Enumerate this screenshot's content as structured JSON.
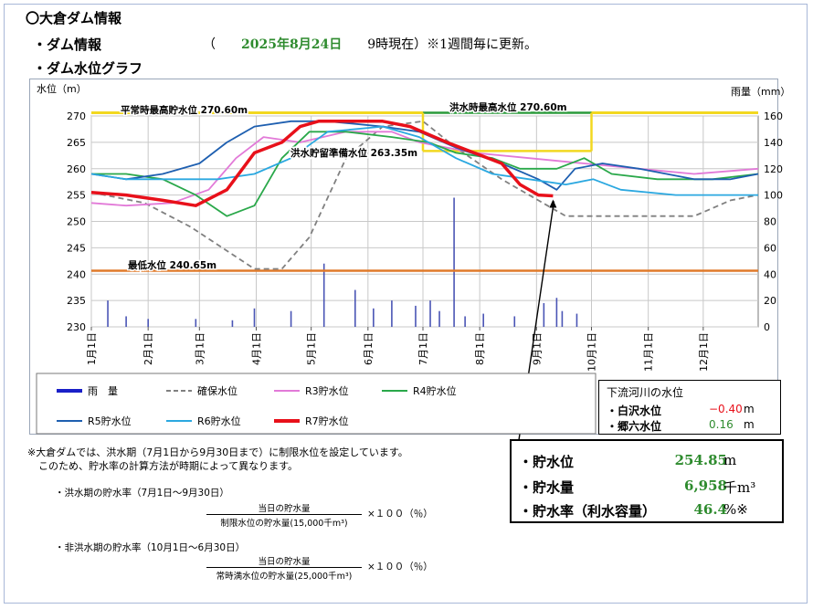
{
  "header": {
    "title": "〇大倉ダム情報",
    "info_label": "・ダム情報",
    "paren_open": "（",
    "date": "2025年8月24日",
    "time_status": "9時現在）※1週間毎に更新。",
    "graph_label": "・ダム水位グラフ"
  },
  "chart_data": {
    "type": "line",
    "left_axis": {
      "label": "水位（m）",
      "range": [
        230,
        270
      ],
      "ticks": [
        230,
        235,
        240,
        245,
        250,
        255,
        260,
        265,
        270
      ]
    },
    "right_axis": {
      "label": "雨量（mm）",
      "range": [
        0,
        160
      ],
      "ticks": [
        0,
        20,
        40,
        60,
        80,
        100,
        120,
        140,
        160
      ]
    },
    "months": [
      "1月1日",
      "2月1日",
      "3月1日",
      "4月1日",
      "5月1日",
      "6月1日",
      "7月1日",
      "8月1日",
      "9月1日",
      "10月1日",
      "11月1日",
      "12月1日"
    ],
    "reference_lines": [
      {
        "label": "平常時最高貯水位 270.60m",
        "value": 270.6
      },
      {
        "label": "洪水時最高水位 270.60m",
        "value": 270.6
      },
      {
        "label": "洪水貯留準備水位 263.35m",
        "value": 263.35
      },
      {
        "label": "最低水位 240.65m",
        "value": 240.65
      }
    ],
    "series": [
      {
        "name": "確保水位",
        "color": "#808080",
        "dash": true,
        "points": [
          [
            1,
            255.5
          ],
          [
            30,
            253.5
          ],
          [
            55,
            249
          ],
          [
            90,
            241
          ],
          [
            105,
            241
          ],
          [
            120,
            247
          ],
          [
            140,
            262
          ],
          [
            160,
            268
          ],
          [
            182,
            269
          ],
          [
            200,
            264
          ],
          [
            225,
            258
          ],
          [
            245,
            254
          ],
          [
            260,
            251
          ],
          [
            275,
            251
          ],
          [
            330,
            251
          ],
          [
            350,
            254
          ],
          [
            365,
            255
          ]
        ]
      },
      {
        "name": "R3貯水位",
        "color": "#e27ad8",
        "points": [
          [
            1,
            253.5
          ],
          [
            20,
            253
          ],
          [
            45,
            253.5
          ],
          [
            65,
            256
          ],
          [
            80,
            262
          ],
          [
            95,
            266
          ],
          [
            115,
            265
          ],
          [
            140,
            267
          ],
          [
            165,
            267
          ],
          [
            180,
            265
          ],
          [
            210,
            263
          ],
          [
            240,
            262
          ],
          [
            270,
            261
          ],
          [
            300,
            260
          ],
          [
            330,
            259
          ],
          [
            365,
            260
          ]
        ]
      },
      {
        "name": "R4貯水位",
        "color": "#2aa84a",
        "points": [
          [
            1,
            259
          ],
          [
            20,
            259
          ],
          [
            40,
            258
          ],
          [
            58,
            255
          ],
          [
            75,
            251
          ],
          [
            90,
            253
          ],
          [
            105,
            262
          ],
          [
            120,
            267
          ],
          [
            140,
            267
          ],
          [
            165,
            266
          ],
          [
            185,
            265
          ],
          [
            200,
            263
          ],
          [
            220,
            262
          ],
          [
            235,
            260
          ],
          [
            255,
            260
          ],
          [
            270,
            262
          ],
          [
            285,
            259
          ],
          [
            310,
            258
          ],
          [
            340,
            258
          ],
          [
            365,
            259
          ]
        ]
      },
      {
        "name": "R5貯水位",
        "color": "#1e5fb0",
        "points": [
          [
            1,
            259
          ],
          [
            20,
            258
          ],
          [
            40,
            259
          ],
          [
            60,
            261
          ],
          [
            75,
            265
          ],
          [
            90,
            268
          ],
          [
            110,
            269
          ],
          [
            130,
            269
          ],
          [
            160,
            268
          ],
          [
            180,
            267
          ],
          [
            200,
            264
          ],
          [
            225,
            261
          ],
          [
            245,
            258
          ],
          [
            255,
            256
          ],
          [
            265,
            260
          ],
          [
            280,
            261
          ],
          [
            300,
            260
          ],
          [
            330,
            258
          ],
          [
            350,
            258
          ],
          [
            365,
            259
          ]
        ]
      },
      {
        "name": "R6貯水位",
        "color": "#2ba8e0",
        "points": [
          [
            1,
            259
          ],
          [
            20,
            258
          ],
          [
            45,
            258
          ],
          [
            70,
            258
          ],
          [
            90,
            259
          ],
          [
            110,
            262
          ],
          [
            130,
            267
          ],
          [
            160,
            268
          ],
          [
            180,
            266
          ],
          [
            200,
            262
          ],
          [
            220,
            259
          ],
          [
            240,
            258
          ],
          [
            260,
            257
          ],
          [
            275,
            258
          ],
          [
            290,
            256
          ],
          [
            320,
            255
          ],
          [
            345,
            255
          ],
          [
            365,
            255
          ]
        ]
      },
      {
        "name": "R7貯水位",
        "color": "#e8101a",
        "width": 3.5,
        "points": [
          [
            1,
            255.5
          ],
          [
            20,
            255
          ],
          [
            40,
            254
          ],
          [
            58,
            253
          ],
          [
            75,
            256
          ],
          [
            90,
            263
          ],
          [
            105,
            265
          ],
          [
            115,
            268
          ],
          [
            125,
            269
          ],
          [
            140,
            269
          ],
          [
            160,
            269
          ],
          [
            175,
            268
          ],
          [
            195,
            265
          ],
          [
            210,
            263
          ],
          [
            225,
            261
          ],
          [
            235,
            257
          ],
          [
            245,
            255
          ],
          [
            253,
            254.85
          ]
        ]
      }
    ],
    "rain_bars": [
      [
        10,
        20
      ],
      [
        20,
        8
      ],
      [
        32,
        6
      ],
      [
        58,
        6
      ],
      [
        78,
        5
      ],
      [
        90,
        14
      ],
      [
        110,
        12
      ],
      [
        128,
        48
      ],
      [
        145,
        28
      ],
      [
        155,
        14
      ],
      [
        165,
        20
      ],
      [
        178,
        16
      ],
      [
        186,
        20
      ],
      [
        191,
        12
      ],
      [
        199,
        98
      ],
      [
        205,
        8
      ],
      [
        215,
        10
      ],
      [
        232,
        8
      ],
      [
        248,
        18
      ],
      [
        255,
        22
      ],
      [
        258,
        12
      ],
      [
        266,
        10
      ]
    ],
    "legend": [
      "雨　量",
      "確保水位",
      "R3貯水位",
      "R4貯水位",
      "R5貯水位",
      "R6貯水位",
      "R7貯水位"
    ]
  },
  "notes": {
    "line1": "※大倉ダムでは、洪水期（7月1日から9月30日まで）に制限水位を設定しています。",
    "line2": "このため、貯水率の計算方法が時期によって異なります。",
    "flood_title": "・洪水期の貯水率（7月1日～9月30日）",
    "flood_num": "当日の貯水量",
    "flood_den": "制限水位の貯水量(15,000千m³)",
    "nonflood_title": "・非洪水期の貯水率（10月1日～6月30日）",
    "nonflood_num": "当日の貯水量",
    "nonflood_den": "常時満水位の貯水量(25,000千m³)",
    "multiply": "×１００（％）"
  },
  "river": {
    "title": "下流河川の水位",
    "rows": [
      {
        "label": "・白沢水位",
        "value": "−0.40",
        "unit": "m",
        "color": "#e8101a"
      },
      {
        "label": "・郷六水位",
        "value": "0.16",
        "unit": "m",
        "color": "#2e8b2e"
      }
    ]
  },
  "stats": {
    "rows": [
      {
        "label": "・貯水位",
        "value": "254.85",
        "unit": "m"
      },
      {
        "label": "・貯水量",
        "value": "6,958",
        "unit": "千m³"
      },
      {
        "label": "・貯水率（利水容量）",
        "value": "46.4",
        "unit": "%※"
      }
    ]
  }
}
